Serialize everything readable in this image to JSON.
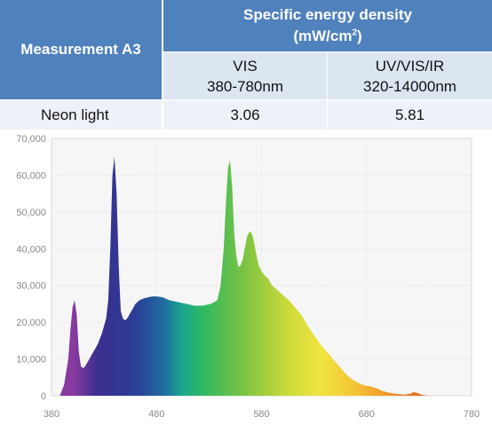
{
  "table": {
    "corner_label": "Measurement A3",
    "group_title_line1": "Specific energy density",
    "group_title_line2": "(mW/cm",
    "group_title_sup": "2",
    "group_title_end": ")",
    "col_vis_line1": "VIS",
    "col_vis_line2": "380-780nm",
    "col_uv_line1": "UV/VIS/IR",
    "col_uv_line2": "320-14000nm",
    "row_label": "Neon light",
    "row_vis": "3.06",
    "row_uv": "5.81"
  },
  "chart_data": {
    "type": "area",
    "xlim": [
      380,
      780
    ],
    "ylim": [
      0,
      70000
    ],
    "x_ticks": [
      "380",
      "480",
      "580",
      "680",
      "780"
    ],
    "y_ticks": [
      "0",
      "10,000",
      "20,000",
      "30,000",
      "40,000",
      "50,000",
      "60,000",
      "70,000"
    ],
    "grid": true,
    "fill": "visible-spectrum gradient",
    "x": [
      388,
      392,
      396,
      398,
      400,
      402,
      404,
      406,
      408,
      410,
      412,
      414,
      416,
      418,
      420,
      424,
      428,
      432,
      434,
      436,
      438,
      440,
      442,
      444,
      446,
      448,
      450,
      452,
      456,
      460,
      464,
      468,
      472,
      476,
      480,
      486,
      492,
      500,
      508,
      516,
      524,
      532,
      538,
      541,
      544,
      546,
      548,
      550,
      552,
      554,
      556,
      558,
      560,
      562,
      564,
      566,
      568,
      570,
      572,
      574,
      576,
      578,
      580,
      582,
      584,
      586,
      588,
      590,
      592,
      594,
      596,
      600,
      606,
      612,
      618,
      624,
      630,
      636,
      642,
      648,
      654,
      660,
      666,
      672,
      678,
      684,
      690,
      696,
      702,
      708,
      716,
      722,
      725,
      728,
      731,
      734,
      740
    ],
    "y": [
      0,
      3000,
      10000,
      18000,
      24000,
      26000,
      22000,
      12000,
      8000,
      7500,
      8000,
      9000,
      10000,
      11000,
      12000,
      14000,
      17000,
      21000,
      26000,
      40000,
      60000,
      65000,
      55000,
      35000,
      23000,
      21000,
      20500,
      21000,
      23000,
      25000,
      26000,
      26500,
      26800,
      27000,
      27000,
      26800,
      26000,
      25500,
      25000,
      24500,
      24500,
      25000,
      26000,
      30000,
      40000,
      52000,
      62000,
      64000,
      57000,
      44000,
      38000,
      35000,
      35500,
      37000,
      40000,
      43000,
      44500,
      44500,
      43000,
      40000,
      37000,
      35000,
      34000,
      33000,
      32500,
      32000,
      31000,
      30000,
      29500,
      29000,
      28500,
      27500,
      26000,
      24000,
      22000,
      19000,
      16500,
      14000,
      12000,
      10000,
      8000,
      6000,
      4500,
      3500,
      2800,
      2500,
      2000,
      1200,
      800,
      500,
      300,
      600,
      1000,
      800,
      400,
      200,
      0
    ]
  }
}
